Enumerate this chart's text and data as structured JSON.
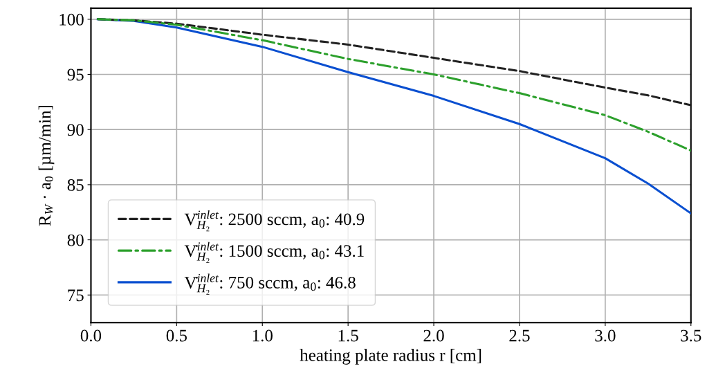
{
  "chart_data": {
    "type": "line",
    "xlabel": "heating plate radius r [cm]",
    "ylabel": "R$_{W}$ · a$_{0}$ [µm/min]",
    "xlim": [
      0.0,
      3.5
    ],
    "xticks": [
      {
        "value": 0,
        "label": "0.0"
      },
      0.5,
      {
        "value": 1,
        "label": "1.0"
      },
      1.5,
      {
        "value": 2,
        "label": "2.0"
      },
      2.5,
      {
        "value": 3,
        "label": "3.0"
      },
      3.5
    ],
    "ylim": [
      72.5,
      101
    ],
    "yticks": [
      75,
      80,
      85,
      90,
      95,
      100
    ],
    "grid": true,
    "legend": "bottom left",
    "marker": "none",
    "series": [
      {
        "name": "V̇$^{inlet}$$_{H₂}$: 2500 sccm, a$_{0}$: 40.9",
        "color": "#222222",
        "line_style": "dashed",
        "x": [
          0.04,
          0.25,
          0.5,
          1.0,
          1.5,
          2.0,
          2.5,
          3.0,
          3.25,
          3.5
        ],
        "values": [
          100,
          99.9,
          99.6,
          98.6,
          97.7,
          96.5,
          95.3,
          93.8,
          93.1,
          92.2
        ]
      },
      {
        "name": "V̇$^{inlet}$$_{H₂}$: 1500 sccm, a$_{0}$: 43.1",
        "color": "#2ca02c",
        "line_style": "dashdot",
        "x": [
          0.04,
          0.25,
          0.5,
          1.0,
          1.5,
          2.0,
          2.5,
          3.0,
          3.25,
          3.5
        ],
        "values": [
          100,
          99.9,
          99.5,
          98.1,
          96.4,
          95.0,
          93.3,
          91.3,
          89.8,
          88.1
        ]
      },
      {
        "name": "V̇$^{inlet}$$_{H₂}$: 750 sccm, a$_{0}$: 46.8",
        "color": "#0a4fd0",
        "line_style": "solid",
        "x": [
          0.04,
          0.25,
          0.5,
          1.0,
          1.5,
          2.0,
          2.5,
          3.0,
          3.25,
          3.5
        ],
        "values": [
          100,
          99.85,
          99.25,
          97.5,
          95.2,
          93.05,
          90.5,
          87.4,
          85.1,
          82.4
        ]
      }
    ]
  }
}
